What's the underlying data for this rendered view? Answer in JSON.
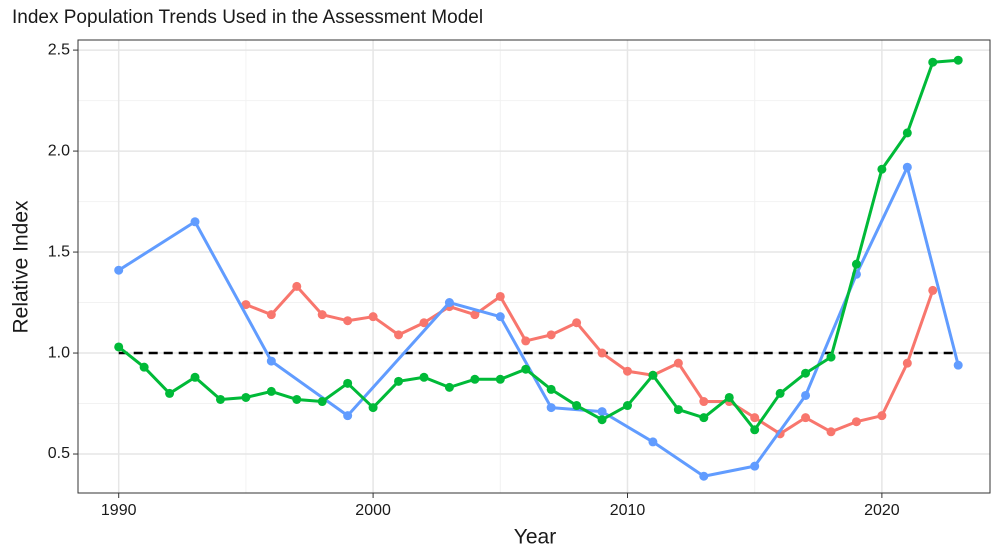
{
  "chart_data": {
    "type": "line",
    "title": "Index Population Trends Used in the Assessment Model",
    "x_label": "Year",
    "y_label": "Relative Index",
    "xlim": [
      1988.4,
      2024.25
    ],
    "ylim": [
      0.307,
      2.55
    ],
    "xticks": [
      1990,
      2000,
      2010,
      2020
    ],
    "yticks": [
      {
        "value": 0.5,
        "label": "0.5"
      },
      {
        "value": 1,
        "label": "1.0"
      },
      {
        "value": 1.5,
        "label": "1.5"
      },
      {
        "value": 2,
        "label": "2.0"
      },
      {
        "value": 2.5,
        "label": "2.5"
      }
    ],
    "minor_xticks": [
      1995,
      2005,
      2015
    ],
    "minor_yticks": [
      0.75,
      1.25,
      1.75,
      2.25
    ],
    "grid": true,
    "reference_line": {
      "y": 1,
      "x": [
        1990,
        2023
      ],
      "color": "#000000"
    },
    "series": [
      {
        "color": "#f8766d",
        "x": [
          1995,
          1996,
          1997,
          1998,
          1999,
          2000,
          2001,
          2002,
          2003,
          2004,
          2005,
          2006,
          2007,
          2008,
          2009,
          2010,
          2011,
          2012,
          2013,
          2014,
          2015,
          2016,
          2017,
          2018,
          2019,
          2020,
          2021,
          2022
        ],
        "values": [
          1.24,
          1.19,
          1.33,
          1.19,
          1.16,
          1.18,
          1.09,
          1.15,
          1.23,
          1.19,
          1.28,
          1.06,
          1.09,
          1.15,
          1.0,
          0.91,
          0.89,
          0.95,
          0.76,
          0.76,
          0.68,
          0.6,
          0.68,
          0.61,
          0.66,
          0.69,
          0.95,
          1.31
        ]
      },
      {
        "color": "#619cff",
        "x": [
          1990,
          1993,
          1996,
          1999,
          2003,
          2005,
          2007,
          2009,
          2011,
          2013,
          2015,
          2017,
          2019,
          2021,
          2023
        ],
        "values": [
          1.41,
          1.65,
          0.96,
          0.69,
          1.25,
          1.18,
          0.73,
          0.71,
          0.56,
          0.39,
          0.44,
          0.79,
          1.39,
          1.92,
          0.94
        ]
      },
      {
        "color": "#00ba38",
        "x": [
          1990,
          1991,
          1992,
          1993,
          1994,
          1995,
          1996,
          1997,
          1998,
          1999,
          2000,
          2001,
          2002,
          2003,
          2004,
          2005,
          2006,
          2007,
          2008,
          2009,
          2010,
          2011,
          2012,
          2013,
          2014,
          2015,
          2016,
          2017,
          2018,
          2019,
          2020,
          2021,
          2022,
          2023
        ],
        "values": [
          1.03,
          0.93,
          0.8,
          0.88,
          0.77,
          0.78,
          0.81,
          0.77,
          0.76,
          0.85,
          0.73,
          0.86,
          0.88,
          0.83,
          0.87,
          0.87,
          0.92,
          0.82,
          0.74,
          0.67,
          0.74,
          0.89,
          0.72,
          0.68,
          0.78,
          0.62,
          0.8,
          0.9,
          0.98,
          1.44,
          1.91,
          2.09,
          2.44,
          2.45
        ]
      }
    ]
  }
}
